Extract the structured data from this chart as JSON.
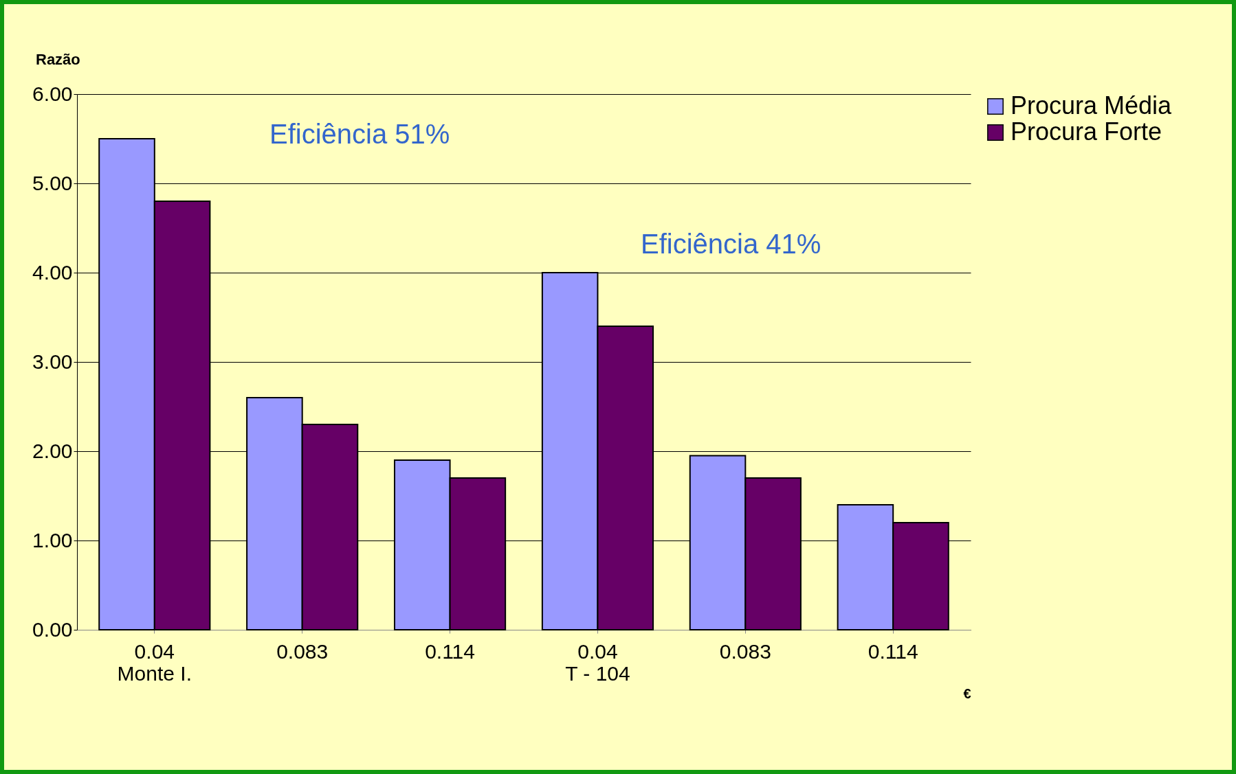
{
  "chart_data": {
    "type": "bar",
    "ylabel": "Razão",
    "xlabel": "€",
    "categories": [
      "0.04\nMonte I.",
      "0.083",
      "0.114",
      "0.04\nT - 104",
      "0.083",
      "0.114"
    ],
    "series": [
      {
        "name": "Procura Média",
        "color": "#9999ff",
        "values": [
          5.5,
          2.6,
          1.9,
          4.0,
          1.95,
          1.4
        ]
      },
      {
        "name": "Procura Forte",
        "color": "#660066",
        "values": [
          4.8,
          2.3,
          1.7,
          3.4,
          1.7,
          1.2
        ]
      }
    ],
    "ylim": [
      0,
      6
    ],
    "yticks": [
      {
        "value": 0,
        "label": "0.00"
      },
      {
        "value": 1,
        "label": "1.00"
      },
      {
        "value": 2,
        "label": "2.00"
      },
      {
        "value": 3,
        "label": "3.00"
      },
      {
        "value": 4,
        "label": "4.00"
      },
      {
        "value": 5,
        "label": "5.00"
      },
      {
        "value": 6,
        "label": "6.00"
      }
    ],
    "grid": "y",
    "legend": "right",
    "annotations": [
      "Eficiência 51%",
      "Eficiência 41%"
    ]
  }
}
